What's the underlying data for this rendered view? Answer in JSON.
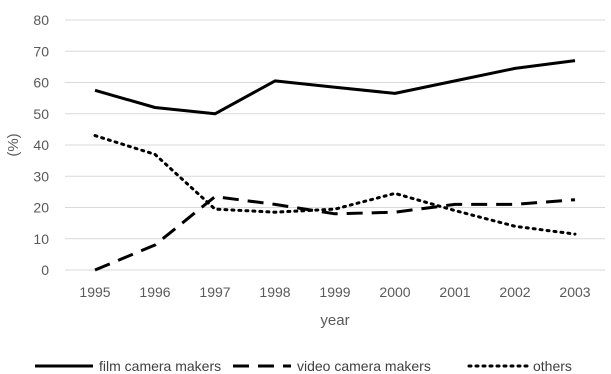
{
  "chart_data": {
    "type": "line",
    "x": [
      "1995",
      "1996",
      "1997",
      "1998",
      "1999",
      "2000",
      "2001",
      "2002",
      "2003"
    ],
    "xlabel": "year",
    "ylabel": "(%)",
    "ylim": [
      0,
      80
    ],
    "yticks": [
      "0",
      "10",
      "20",
      "30",
      "40",
      "50",
      "60",
      "70",
      "80"
    ],
    "grid": "horizontal",
    "legend_position": "bottom",
    "series": [
      {
        "name": "film camera makers",
        "style": "solid",
        "color": "#000000",
        "values": [
          57.5,
          52,
          50,
          60.5,
          58.5,
          56.5,
          60.5,
          64.5,
          67
        ]
      },
      {
        "name": "video camera makers",
        "style": "dashed",
        "color": "#000000",
        "values": [
          0,
          8,
          23.5,
          21,
          18,
          18.5,
          21,
          21,
          22.5
        ]
      },
      {
        "name": "others",
        "style": "dotted",
        "color": "#000000",
        "values": [
          43,
          37,
          19.5,
          18.5,
          19.5,
          24.5,
          19,
          14,
          11.5
        ]
      }
    ]
  }
}
